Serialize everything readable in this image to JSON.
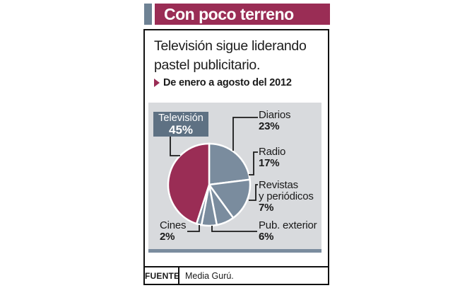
{
  "header": {
    "title": "Con poco terreno"
  },
  "intro": "Televisión sigue liderando pastel publicitario.",
  "period_note": "De enero a agosto del 2012",
  "chart_data": {
    "type": "pie",
    "title": "Con poco terreno",
    "subtitle": "Televisión sigue liderando pastel publicitario.",
    "period": "De enero a agosto del 2012",
    "unit": "%",
    "slices": [
      {
        "label": "Televisión",
        "value": 45,
        "color": "#9a2d55"
      },
      {
        "label": "Diarios",
        "value": 23,
        "color": "#7a8c9e"
      },
      {
        "label": "Radio",
        "value": 17,
        "color": "#7a8c9e"
      },
      {
        "label": "Revistas y periódicos",
        "value": 7,
        "color": "#7a8c9e"
      },
      {
        "label": "Pub. exterior",
        "value": 6,
        "color": "#7a8c9e"
      },
      {
        "label": "Cines",
        "value": 2,
        "color": "#7a8c9e"
      }
    ],
    "start_at_top": true,
    "clockwise_order": [
      "Diarios",
      "Radio",
      "Revistas y periódicos",
      "Pub. exterior",
      "Cines",
      "Televisión"
    ],
    "legend_position": "callouts",
    "source": "Media Gurú."
  },
  "callouts": {
    "television": {
      "name": "Televisión",
      "pct": "45%"
    },
    "diarios": {
      "name": "Diarios",
      "pct": "23%"
    },
    "radio": {
      "name": "Radio",
      "pct": "17%"
    },
    "revistas": {
      "name": "Revistas",
      "name2": "y periódicos",
      "pct": "7%"
    },
    "pub_exterior": {
      "name": "Pub. exterior",
      "pct": "6%"
    },
    "cines": {
      "name": "Cines",
      "pct": "2%"
    }
  },
  "footer": {
    "label": "FUENTE",
    "source": "Media Gurú."
  },
  "colors": {
    "accent_maroon": "#9a2d55",
    "kicker_grey": "#6e8294",
    "callout_box_slate": "#5e7183",
    "pie_grey": "#7a8c9e",
    "panel_background": "#d8dadd",
    "underline_bar": "#7a8c9e",
    "border": "#111111",
    "text": "#1a1a1a"
  }
}
